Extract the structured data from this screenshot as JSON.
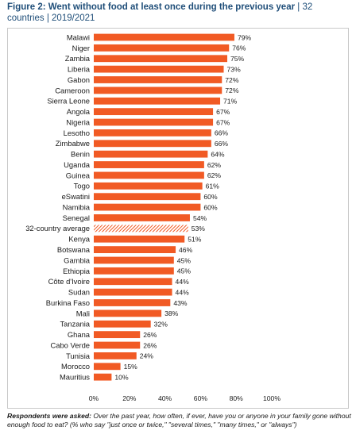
{
  "header": {
    "title": "Figure 2: Went without food at least once during the previous year",
    "separator": " | ",
    "subtitle": "32 countries | 2019/2021"
  },
  "colors": {
    "bar": "#f15a24",
    "average_hatch": "#f15a24",
    "text": "#1a1a1a",
    "title": "#1f4e79"
  },
  "chart_data": {
    "type": "bar",
    "orientation": "horizontal",
    "categories": [
      "Malawi",
      "Niger",
      "Zambia",
      "Liberia",
      "Gabon",
      "Cameroon",
      "Sierra Leone",
      "Angola",
      "Nigeria",
      "Lesotho",
      "Zimbabwe",
      "Benin",
      "Uganda",
      "Guinea",
      "Togo",
      "eSwatini",
      "Namibia",
      "Senegal",
      "32-country average",
      "Kenya",
      "Botswana",
      "Gambia",
      "Ethiopia",
      "Côte d'Ivoire",
      "Sudan",
      "Burkina Faso",
      "Mali",
      "Tanzania",
      "Ghana",
      "Cabo Verde",
      "Tunisia",
      "Morocco",
      "Mauritius"
    ],
    "values": [
      79,
      76,
      75,
      73,
      72,
      72,
      71,
      67,
      67,
      66,
      66,
      64,
      62,
      62,
      61,
      60,
      60,
      54,
      53,
      51,
      46,
      45,
      45,
      44,
      44,
      43,
      38,
      32,
      26,
      26,
      24,
      15,
      10
    ],
    "value_labels": [
      "79%",
      "76%",
      "75%",
      "73%",
      "72%",
      "72%",
      "71%",
      "67%",
      "67%",
      "66%",
      "66%",
      "64%",
      "62%",
      "62%",
      "61%",
      "60%",
      "60%",
      "54%",
      "53%",
      "51%",
      "46%",
      "45%",
      "45%",
      "44%",
      "44%",
      "43%",
      "38%",
      "32%",
      "26%",
      "26%",
      "24%",
      "15%",
      "10%"
    ],
    "highlight_category": "32-country average",
    "xlim": [
      0,
      100
    ],
    "xticks": [
      "0%",
      "20%",
      "40%",
      "60%",
      "80%",
      "100%"
    ],
    "grid": false,
    "legend": "none"
  },
  "footnote": {
    "lead": "Respondents were asked:",
    "text": " Over the past year, how often, if ever, have you or anyone in your family gone without enough food to eat? (% who say \"just once or twice,\" \"several times,\" \"many times,\" or \"always\")"
  }
}
